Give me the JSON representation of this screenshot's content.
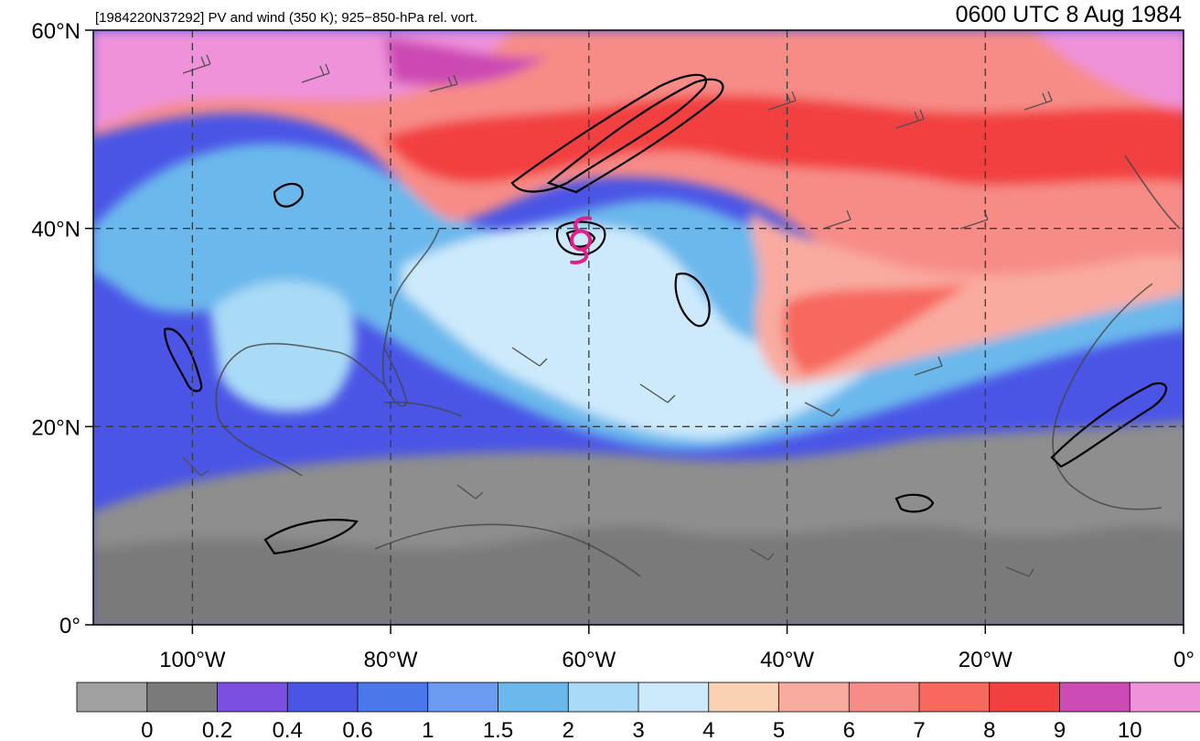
{
  "map": {
    "title_left": "[1984220N37292] PV and wind (350 K); 925−850-hPa rel. vort.",
    "title_right": "0600 UTC 8 Aug 1984",
    "extent": {
      "lon": [
        -110,
        0
      ],
      "lat": [
        0,
        60
      ]
    },
    "lat_labels": [
      "60°N",
      "40°N",
      "20°N",
      "0°"
    ],
    "lat_values": [
      60,
      40,
      20,
      0
    ],
    "lon_labels": [
      "100°W",
      "80°W",
      "60°W",
      "40°W",
      "20°W",
      "0°"
    ],
    "lon_values": [
      -100,
      -80,
      -60,
      -40,
      -20,
      0
    ],
    "storm_marker": {
      "name": "tropical-cyclone-symbol",
      "lon": -60.8,
      "lat": 38.8,
      "color": "#e0218a"
    }
  },
  "colorbar": {
    "labels": [
      "0",
      "0.2",
      "0.4",
      "0.6",
      "1",
      "1.5",
      "2",
      "3",
      "4",
      "5",
      "6",
      "7",
      "8",
      "9",
      "10"
    ],
    "colors": [
      "#a0a0a0",
      "#7a7a7a",
      "#7b4fe0",
      "#4a55e6",
      "#4a78ea",
      "#6b9bf0",
      "#6ab8ec",
      "#a9daf6",
      "#cdeafc",
      "#fbd1b4",
      "#f9aba0",
      "#f78c87",
      "#f7685e",
      "#f24040",
      "#cc4ab4",
      "#ef92da"
    ]
  }
}
